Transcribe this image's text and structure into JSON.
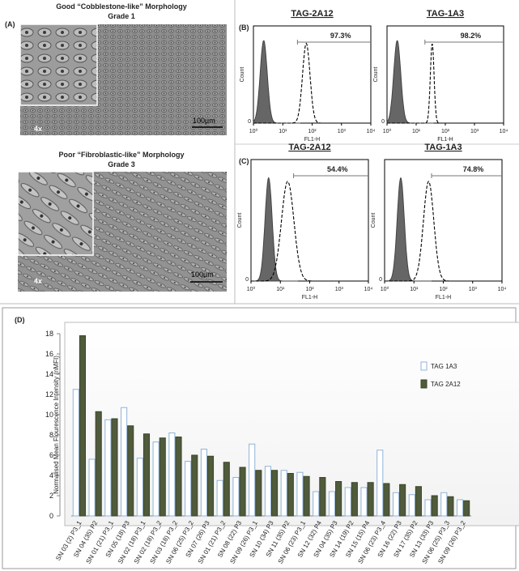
{
  "panel_a": {
    "label": "(A)",
    "images": [
      {
        "title": "Good “Cobblestone-like” Morphology",
        "grade": "Grade 1",
        "magnification": "4x",
        "scale": "100µm"
      },
      {
        "title": "Poor “Fibroblastic-like” Morphology",
        "grade": "Grade 3",
        "magnification": "4x",
        "scale": "100µm"
      }
    ]
  },
  "flow_axes": {
    "xlabel": "FL1-H",
    "ylabel": "Count",
    "xscale": "log",
    "xlim": [
      1,
      10000
    ],
    "xticks": [
      {
        "value": 1,
        "label": "10⁰"
      },
      {
        "value": 10,
        "label": "10¹"
      },
      {
        "value": 100,
        "label": "10²"
      },
      {
        "value": 1000,
        "label": "10³"
      },
      {
        "value": 10000,
        "label": "10⁴"
      }
    ],
    "yticks": [
      0
    ]
  },
  "flow_panels": [
    {
      "label": "(B)",
      "plots": [
        {
          "title": "TAG-2A12",
          "percent": "97.3%"
        },
        {
          "title": "TAG-1A3",
          "percent": "98.2%"
        }
      ]
    },
    {
      "label": "(C)",
      "plots": [
        {
          "title": "TAG-2A12",
          "percent": "54.4%"
        },
        {
          "title": "TAG-1A3",
          "percent": "74.8%"
        }
      ]
    }
  ],
  "chart_data": {
    "type": "bar",
    "label": "(D)",
    "ylabel": "Normalised Mean Flourescence Intensity (nMFI)",
    "categories": [
      "SN 03 (2) P3_1",
      "SN 04 (35) P2",
      "SN 01 (21) P3_1",
      "SN 05 (18) P3",
      "SN 02 (18) P3_1",
      "SN 02 (18) P3_2",
      "SN 03 (18) P3_2",
      "SN 06 (25) P3_2",
      "SN 07 (26) P3",
      "SN 01 (21) P3_2",
      "SN 08 (22) P3",
      "SN 09 (26) P3_1",
      "SN 10 (34) P3",
      "SN 11 (35) P2",
      "SN 06 (23) P3_1",
      "SN 12 (32) P4",
      "SN 04 (35) P3",
      "SN 14 (19) P2",
      "SN 15 (15) P4",
      "SN 06 (23) P3_4",
      "SN 16 (22) P3",
      "SN 17 (35) P2",
      "SN 13 (33) P3",
      "SN 06 (25) P3_3",
      "SN 09 (26) P3_2"
    ],
    "series": [
      {
        "name": "TAG 1A3",
        "color": "#ffffff",
        "stroke": "#8fb3d9",
        "values": [
          12.5,
          5.6,
          9.5,
          10.7,
          5.7,
          7.3,
          8.2,
          5.4,
          6.6,
          3.5,
          3.8,
          7.1,
          4.9,
          4.5,
          4.3,
          2.4,
          2.4,
          2.8,
          2.8,
          6.5,
          2.3,
          2.1,
          1.6,
          2.3,
          1.6
        ]
      },
      {
        "name": "TAG 2A12",
        "color": "#4f5b3c",
        "stroke": "#3a4429",
        "values": [
          17.8,
          10.3,
          9.6,
          8.9,
          8.1,
          7.7,
          7.8,
          6.0,
          5.9,
          5.3,
          4.8,
          4.5,
          4.5,
          4.2,
          3.9,
          3.8,
          3.4,
          3.3,
          3.3,
          3.2,
          3.1,
          2.9,
          2.0,
          1.9,
          1.5
        ]
      }
    ],
    "ylim": [
      0,
      18
    ],
    "yticks": [
      0,
      2,
      4,
      6,
      8,
      10,
      12,
      14,
      16,
      18
    ],
    "grid": false,
    "legend": "right"
  }
}
